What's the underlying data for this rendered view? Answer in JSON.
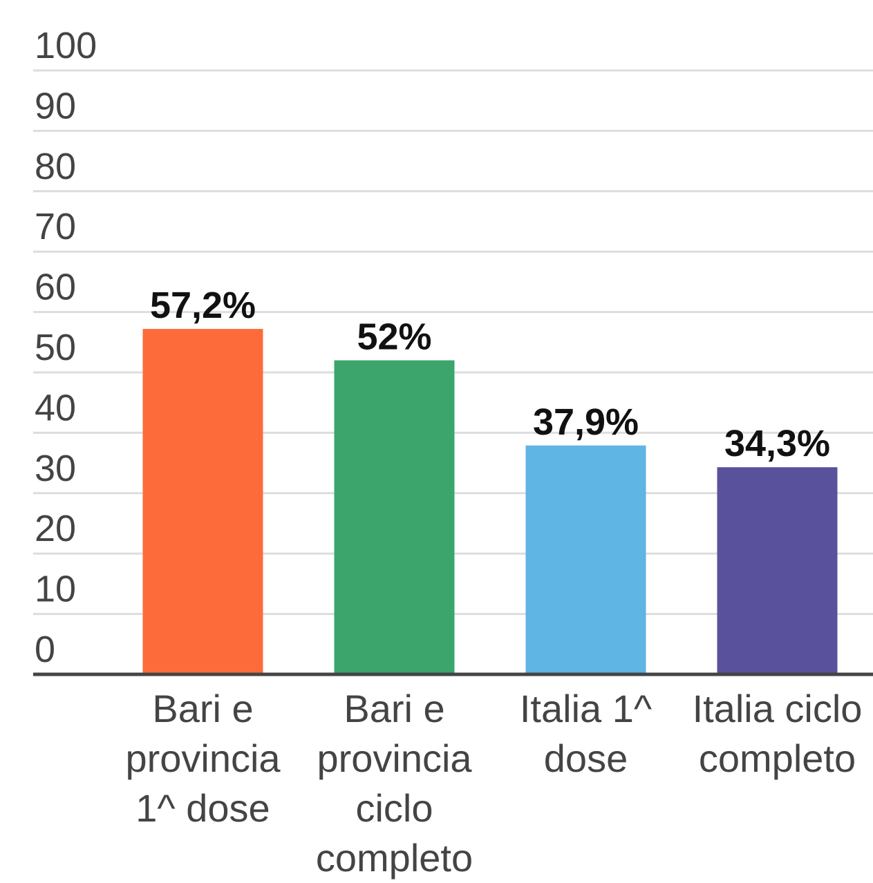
{
  "chart_data": {
    "type": "bar",
    "categories": [
      "Bari e provincia 1^ dose",
      "Bari e provincia ciclo completo",
      "Italia 1^ dose",
      "Italia ciclo completo"
    ],
    "values": [
      57.2,
      52,
      37.9,
      34.3
    ],
    "value_labels": [
      "57,2%",
      "52%",
      "37,9%",
      "34,3%"
    ],
    "colors": [
      "#fe6b3a",
      "#3ba56c",
      "#5fb5e3",
      "#5a519c"
    ],
    "ylim": [
      0,
      100
    ],
    "yticks": [
      0,
      10,
      20,
      30,
      40,
      50,
      60,
      70,
      80,
      90,
      100
    ],
    "grid": true
  }
}
